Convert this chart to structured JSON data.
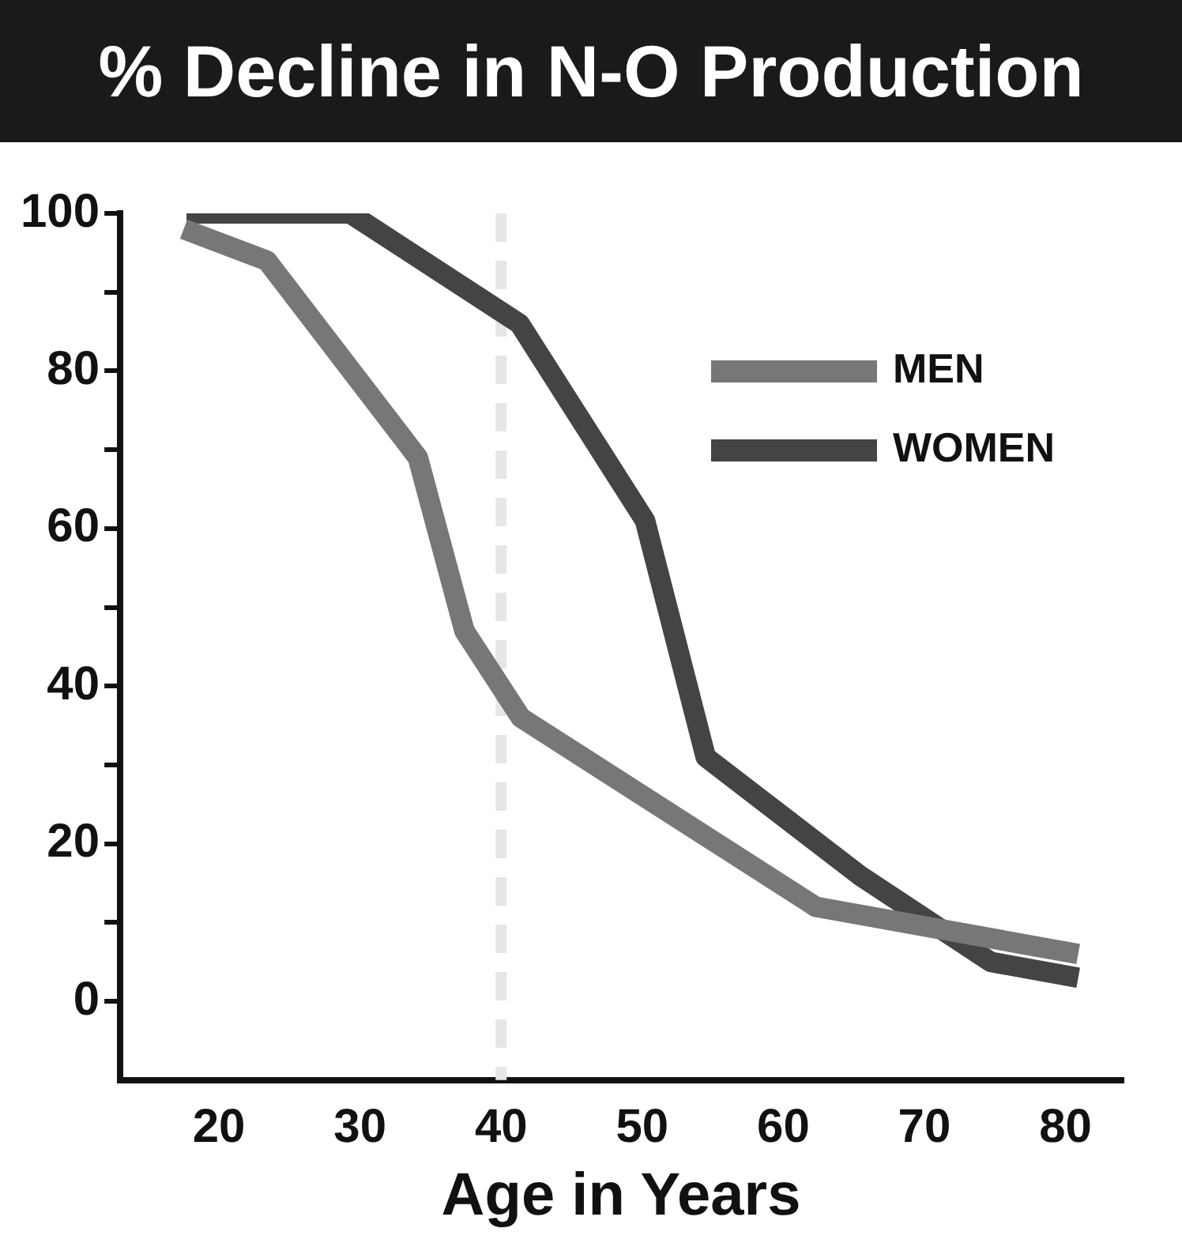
{
  "chart_data": {
    "type": "line",
    "title": "% Decline in N-O Production",
    "xlabel": "Age in Years",
    "xlim": [
      13,
      84
    ],
    "xticks": [
      20,
      30,
      40,
      50,
      60,
      70,
      80
    ],
    "ylim": [
      -10,
      100
    ],
    "yticks": [
      {
        "value": 0,
        "label": "0"
      },
      {
        "value": 10,
        "label": null
      },
      {
        "value": 20,
        "label": "20"
      },
      {
        "value": 30,
        "label": null
      },
      {
        "value": 40,
        "label": "40"
      },
      {
        "value": 50,
        "label": null
      },
      {
        "value": 60,
        "label": "60"
      },
      {
        "value": 70,
        "label": null
      },
      {
        "value": 80,
        "label": "80"
      },
      {
        "value": 90,
        "label": null
      },
      {
        "value": 100,
        "label": "100"
      }
    ],
    "series": [
      {
        "name": "MEN",
        "color": "#777777",
        "x": [
          17.5,
          23.4,
          34.1,
          37.4,
          41.4,
          62.3,
          80.9
        ],
        "values": [
          98,
          94,
          69,
          47,
          36,
          12,
          6
        ]
      },
      {
        "name": "WOMEN",
        "color": "#444444",
        "x": [
          17.7,
          29.3,
          41.3,
          50.2,
          54.5,
          65.4,
          74.7,
          80.9
        ],
        "values": [
          100,
          100,
          86,
          61,
          31,
          16,
          5,
          3
        ]
      }
    ],
    "ref_lines": [
      {
        "axis": "x",
        "value": 40,
        "color": "#e6e6e6",
        "line_style": "dashed"
      }
    ],
    "grid": false,
    "legend": "top right",
    "marker": "none",
    "line_style": "solid"
  }
}
